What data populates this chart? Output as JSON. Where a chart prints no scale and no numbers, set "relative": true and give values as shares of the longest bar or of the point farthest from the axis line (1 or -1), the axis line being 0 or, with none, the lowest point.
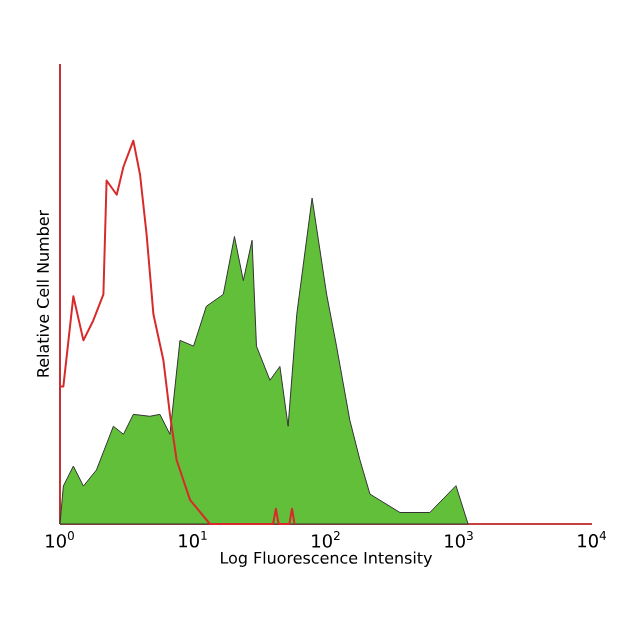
{
  "chart_data": {
    "type": "area",
    "xlabel": "Log Fluorescence Intensity",
    "ylabel": "Relative Cell Number",
    "relative": true,
    "log": "x",
    "xlim": [
      1,
      10000
    ],
    "xticks": [
      {
        "value": 1,
        "label": "10$^{0}$"
      },
      {
        "value": 10,
        "label": "10$^{1}$"
      },
      {
        "value": 100,
        "label": "10$^{2}$"
      },
      {
        "value": 1000,
        "label": "10$^{3}$"
      },
      {
        "value": 10000,
        "label": "10$^{4}$"
      }
    ],
    "series": [
      {
        "color": "#62bf3a",
        "x": [
          1,
          1.06,
          1.26,
          1.5,
          1.88,
          2.52,
          3.0,
          3.56,
          4.74,
          5.64,
          6.71,
          7.98,
          10.1,
          12.6,
          16.9,
          20.5,
          23.9,
          27.8,
          30.0,
          37.9,
          45.0,
          51.9,
          60.3,
          78.6,
          101,
          120,
          151,
          180,
          214,
          360,
          604,
          949,
          1170
        ],
        "values": [
          0,
          0.099,
          0.151,
          0.099,
          0.141,
          0.255,
          0.234,
          0.286,
          0.281,
          0.286,
          0.234,
          0.479,
          0.464,
          0.568,
          0.599,
          0.75,
          0.635,
          0.74,
          0.464,
          0.375,
          0.411,
          0.255,
          0.547,
          0.85,
          0.6,
          0.464,
          0.271,
          0.167,
          0.078,
          0.03,
          0.03,
          0.1,
          0
        ]
      },
      {
        "type": "line",
        "color": "#d82a2a",
        "x": [
          1,
          1.06,
          1.26,
          1.5,
          1.78,
          2.12,
          2.24,
          2.67,
          3.0,
          3.56,
          4.0,
          4.48,
          5.04,
          5.99,
          6.71,
          7.53,
          9.5,
          13.4,
          40,
          42,
          44,
          53,
          55.5,
          58
        ],
        "values": [
          0.359,
          0.359,
          0.594,
          0.479,
          0.531,
          0.599,
          0.896,
          0.859,
          0.932,
          1.0,
          0.911,
          0.755,
          0.547,
          0.427,
          0.286,
          0.167,
          0.063,
          0,
          0,
          0.04,
          0,
          0,
          0.04,
          0
        ]
      }
    ]
  }
}
